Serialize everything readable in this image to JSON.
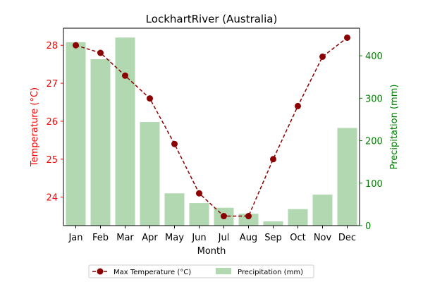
{
  "chart_data": {
    "type": "bar+line",
    "title": "LockhartRiver (Australia)",
    "xlabel": "Month",
    "ylabel_left": "Temperature (°C)",
    "ylabel_right": "Precipitation (mm)",
    "categories": [
      "Jan",
      "Feb",
      "Mar",
      "Apr",
      "May",
      "Jun",
      "Jul",
      "Aug",
      "Sep",
      "Oct",
      "Nov",
      "Dec"
    ],
    "series": [
      {
        "name": "Max Temperature (°C)",
        "type": "line",
        "axis": "left",
        "style": "dashed",
        "marker": "circle",
        "color": "#8b0000",
        "values": [
          28.0,
          27.8,
          27.2,
          26.6,
          25.4,
          24.1,
          23.5,
          23.5,
          25.0,
          26.4,
          27.7,
          28.2
        ]
      },
      {
        "name": "Precipitation (mm)",
        "type": "bar",
        "axis": "right",
        "color": "#b2d8b2",
        "values": [
          432,
          392,
          443,
          244,
          76,
          53,
          42,
          28,
          10,
          39,
          73,
          230
        ]
      }
    ],
    "ylim_left": [
      23.25,
      28.45
    ],
    "yticks_left": [
      24,
      25,
      26,
      27,
      28
    ],
    "ylim_right": [
      0,
      465
    ],
    "yticks_right": [
      0,
      100,
      200,
      300,
      400
    ],
    "left_axis_color": "#ff0000",
    "right_axis_color": "#008000",
    "grid": false,
    "legend_position": "bottom-center"
  }
}
